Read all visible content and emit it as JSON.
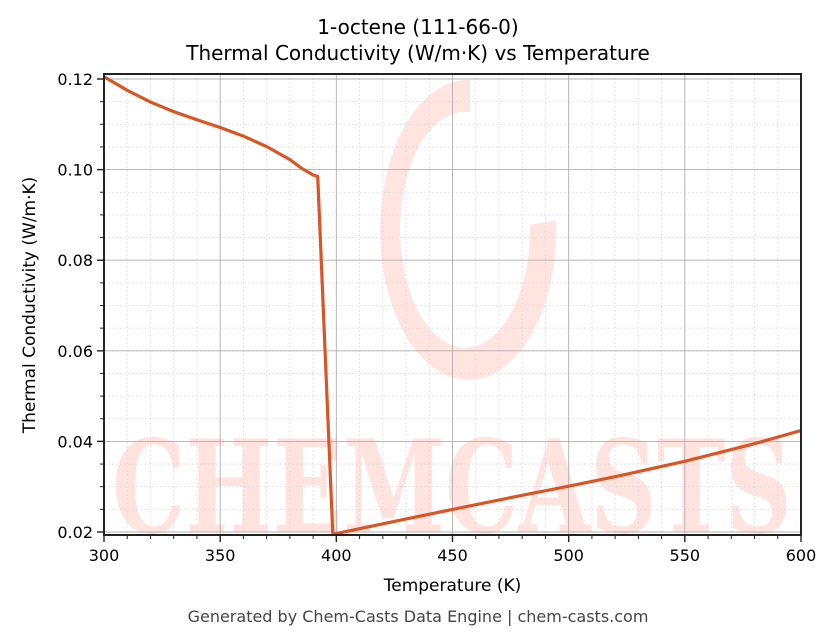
{
  "chart_data": {
    "type": "line",
    "title": "1-octene (111-66-0)",
    "subtitle": "Thermal Conductivity (W/m·K) vs Temperature",
    "xlabel": "Temperature (K)",
    "ylabel": "Thermal Conductivity (W/m·K)",
    "xlim": [
      300,
      600
    ],
    "ylim": [
      0.0195,
      0.121
    ],
    "xticks": [
      300,
      350,
      400,
      450,
      500,
      550,
      600
    ],
    "xtick_labels": [
      "300",
      "350",
      "400",
      "450",
      "500",
      "550",
      "600"
    ],
    "yticks": [
      0.02,
      0.04,
      0.06,
      0.08,
      0.1,
      0.12
    ],
    "ytick_labels": [
      "0.02",
      "0.04",
      "0.06",
      "0.08",
      "0.10",
      "0.12"
    ],
    "grid": true,
    "legend": null,
    "series": [
      {
        "name": "Thermal Conductivity",
        "color": "#d95525",
        "x": [
          300,
          310,
          320,
          330,
          340,
          350,
          360,
          370,
          380,
          385,
          390,
          392,
          398.5,
          420,
          450,
          480,
          500,
          520,
          550,
          580,
          600
        ],
        "y": [
          0.1205,
          0.1175,
          0.1149,
          0.1128,
          0.111,
          0.1093,
          0.1074,
          0.1051,
          0.1022,
          0.1003,
          0.0988,
          0.0985,
          0.0195,
          0.0218,
          0.025,
          0.0281,
          0.0301,
          0.0322,
          0.0356,
          0.0395,
          0.0424
        ]
      }
    ],
    "watermark": "CHEMCASTS"
  },
  "header": {
    "title": "1-octene (111-66-0)",
    "subtitle": "Thermal Conductivity (W/m·K) vs Temperature"
  },
  "footer": {
    "text": "Generated by Chem-Casts Data Engine | chem-casts.com"
  }
}
